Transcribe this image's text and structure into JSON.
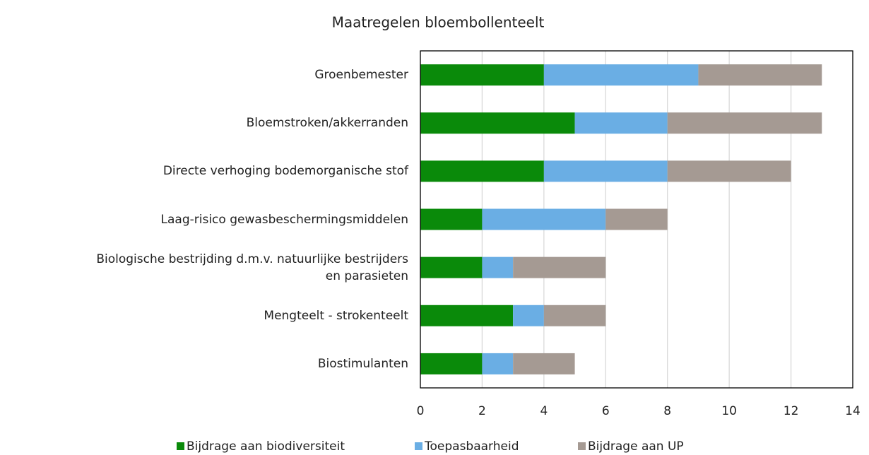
{
  "chart_data": {
    "type": "stacked-bar-horizontal",
    "title": "Maatregelen bloembollenteelt",
    "categories": [
      "Groenbemester",
      "Bloemstroken/akkerranden",
      "Directe verhoging bodemorganische stof",
      "Laag-risico gewasbeschermingsmiddelen",
      "Biologische bestrijding d.m.v. natuurlijke bestrijders\nen parasieten",
      "Mengteelt - strokenteelt",
      "Biostimulanten"
    ],
    "series": [
      {
        "name": "Bijdrage aan biodiversiteit",
        "color": "#0a8a0a",
        "values": [
          4,
          5,
          4,
          2,
          2,
          3,
          2
        ]
      },
      {
        "name": "Toepasbaarheid",
        "color": "#6aaee4",
        "values": [
          5,
          3,
          4,
          4,
          1,
          1,
          1
        ]
      },
      {
        "name": "Bijdrage aan UP",
        "color": "#a59a93",
        "values": [
          4,
          5,
          4,
          2,
          3,
          2,
          2
        ]
      }
    ],
    "xlim": [
      0,
      14
    ],
    "xticks": [
      0,
      2,
      4,
      6,
      8,
      10,
      12,
      14
    ],
    "grid": true,
    "legend": "bottom"
  }
}
